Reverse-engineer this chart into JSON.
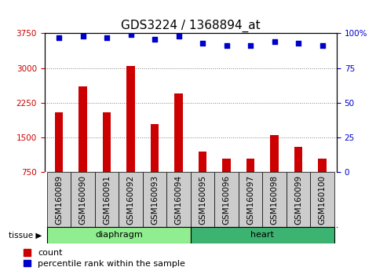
{
  "title": "GDS3224 / 1368894_at",
  "samples": [
    "GSM160089",
    "GSM160090",
    "GSM160091",
    "GSM160092",
    "GSM160093",
    "GSM160094",
    "GSM160095",
    "GSM160096",
    "GSM160097",
    "GSM160098",
    "GSM160099",
    "GSM160100"
  ],
  "counts": [
    2050,
    2600,
    2050,
    3050,
    1800,
    2450,
    1200,
    1050,
    1050,
    1550,
    1300,
    1050
  ],
  "percentiles": [
    97,
    98,
    97,
    99,
    96,
    98,
    93,
    91,
    91,
    94,
    93,
    91
  ],
  "groups": [
    {
      "label": "diaphragm",
      "start": 0,
      "end": 6,
      "color": "#90EE90"
    },
    {
      "label": "heart",
      "start": 6,
      "end": 12,
      "color": "#3CB371"
    }
  ],
  "ylim_left": [
    750,
    3750
  ],
  "ylim_right": [
    0,
    100
  ],
  "yticks_left": [
    750,
    1500,
    2250,
    3000,
    3750
  ],
  "yticks_right": [
    0,
    25,
    50,
    75,
    100
  ],
  "bar_color": "#CC0000",
  "scatter_color": "#0000CC",
  "bar_bottom": 750,
  "title_fontsize": 11,
  "tick_label_fontsize": 7.5,
  "axis_label_fontsize": 8,
  "legend_fontsize": 8,
  "xlim": [
    -0.6,
    11.6
  ]
}
